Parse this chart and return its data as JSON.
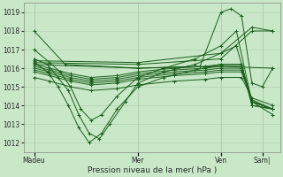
{
  "xlabel": "Pression niveau de la mer( hPa )",
  "ylim": [
    1011.5,
    1019.5
  ],
  "yticks": [
    1012,
    1013,
    1014,
    1015,
    1016,
    1017,
    1018,
    1019
  ],
  "xtick_labels": [
    "Màdeu",
    "Mer",
    "Ven",
    "Sam|"
  ],
  "xtick_positions": [
    75,
    175,
    255,
    295
  ],
  "xlim": [
    65,
    312
  ],
  "bg_color": "#c8e8c8",
  "grid_color": "#b0c8b0",
  "line_color": "#1a5e1a",
  "series": [
    {
      "x": [
        75,
        105,
        175,
        235,
        255,
        265,
        275,
        285,
        295,
        305
      ],
      "y": [
        1018.0,
        1016.2,
        1016.0,
        1016.1,
        1019.0,
        1019.2,
        1018.8,
        1015.2,
        1015.0,
        1016.0
      ]
    },
    {
      "x": [
        75,
        90,
        100,
        110,
        120,
        130,
        140,
        155,
        175,
        200,
        230,
        255,
        270,
        285,
        305
      ],
      "y": [
        1017.0,
        1016.3,
        1015.8,
        1015.0,
        1013.8,
        1013.2,
        1013.5,
        1014.5,
        1015.5,
        1016.0,
        1016.5,
        1017.2,
        1018.0,
        1014.2,
        1013.8
      ]
    },
    {
      "x": [
        75,
        88,
        98,
        108,
        118,
        128,
        138,
        148,
        163,
        175,
        200,
        230,
        255,
        270,
        285,
        305
      ],
      "y": [
        1016.5,
        1016.2,
        1015.5,
        1014.8,
        1013.5,
        1012.5,
        1012.2,
        1013.0,
        1014.2,
        1015.2,
        1015.8,
        1016.2,
        1016.8,
        1017.2,
        1014.2,
        1013.5
      ]
    },
    {
      "x": [
        75,
        88,
        98,
        108,
        118,
        128,
        140,
        155,
        175,
        200,
        230,
        255,
        275,
        285,
        305
      ],
      "y": [
        1016.3,
        1015.8,
        1015.0,
        1014.0,
        1012.8,
        1012.0,
        1012.5,
        1013.8,
        1015.0,
        1015.5,
        1015.9,
        1016.2,
        1016.2,
        1014.0,
        1013.8
      ]
    },
    {
      "x": [
        75,
        90,
        110,
        130,
        155,
        175,
        210,
        240,
        255,
        275,
        285,
        305
      ],
      "y": [
        1016.2,
        1016.0,
        1015.7,
        1015.5,
        1015.6,
        1015.8,
        1016.0,
        1016.1,
        1016.2,
        1016.2,
        1014.0,
        1013.8
      ]
    },
    {
      "x": [
        75,
        90,
        110,
        130,
        155,
        175,
        210,
        240,
        255,
        275,
        285,
        305
      ],
      "y": [
        1016.1,
        1015.9,
        1015.6,
        1015.4,
        1015.5,
        1015.7,
        1015.9,
        1016.0,
        1016.1,
        1016.1,
        1014.2,
        1013.8
      ]
    },
    {
      "x": [
        75,
        90,
        110,
        130,
        155,
        175,
        210,
        240,
        255,
        275,
        285,
        305
      ],
      "y": [
        1016.0,
        1015.8,
        1015.5,
        1015.3,
        1015.4,
        1015.6,
        1015.8,
        1015.9,
        1016.0,
        1016.0,
        1014.2,
        1013.8
      ]
    },
    {
      "x": [
        75,
        90,
        110,
        130,
        155,
        175,
        210,
        240,
        255,
        275,
        285,
        305
      ],
      "y": [
        1015.9,
        1015.7,
        1015.4,
        1015.2,
        1015.3,
        1015.5,
        1015.7,
        1015.8,
        1015.9,
        1015.9,
        1014.2,
        1013.8
      ]
    },
    {
      "x": [
        75,
        90,
        110,
        130,
        155,
        175,
        210,
        240,
        255,
        275,
        285,
        305
      ],
      "y": [
        1015.8,
        1015.6,
        1015.3,
        1015.1,
        1015.2,
        1015.4,
        1015.6,
        1015.7,
        1015.8,
        1015.8,
        1014.3,
        1013.8
      ]
    },
    {
      "x": [
        75,
        90,
        110,
        130,
        155,
        175,
        210,
        240,
        255,
        275,
        285,
        305
      ],
      "y": [
        1015.5,
        1015.3,
        1015.0,
        1014.8,
        1014.9,
        1015.1,
        1015.3,
        1015.4,
        1015.5,
        1015.5,
        1014.4,
        1014.0
      ]
    },
    {
      "x": [
        75,
        175,
        255,
        305
      ],
      "y": [
        1016.2,
        1016.0,
        1016.1,
        1016.0
      ]
    },
    {
      "x": [
        75,
        175,
        255,
        285,
        305
      ],
      "y": [
        1016.3,
        1016.2,
        1016.5,
        1018.0,
        1018.0
      ]
    },
    {
      "x": [
        75,
        175,
        255,
        285,
        305
      ],
      "y": [
        1016.4,
        1016.3,
        1016.8,
        1018.2,
        1018.0
      ]
    }
  ]
}
